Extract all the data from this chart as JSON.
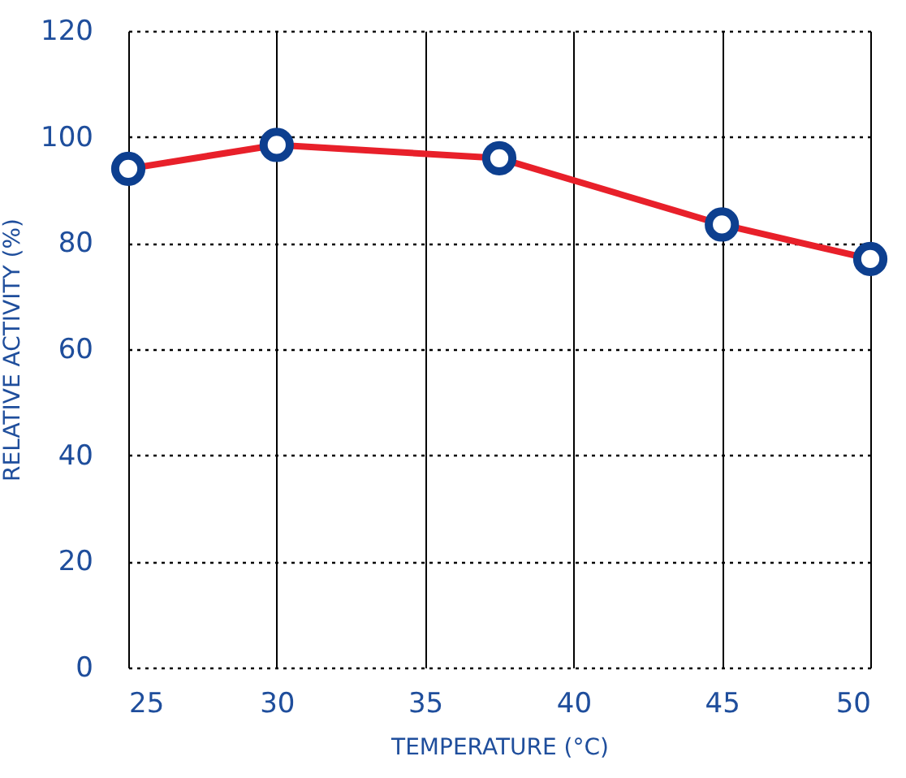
{
  "chart_data": {
    "type": "line",
    "xlabel": "TEMPERATURE (°C)",
    "ylabel": "RELATIVE ACTIVITY (%)",
    "x": [
      25,
      30,
      37.5,
      45,
      50
    ],
    "series": [
      {
        "color": "#e8202a",
        "values": [
          94,
          98.5,
          96,
          83.5,
          77
        ]
      }
    ],
    "xlim": [
      25,
      50
    ],
    "xticks": [
      25,
      30,
      35,
      40,
      45,
      50
    ],
    "ylim": [
      0,
      120
    ],
    "yticks": [
      0,
      20,
      40,
      60,
      80,
      100,
      120
    ],
    "grid": true,
    "marker": "circle",
    "line_style": "solid"
  }
}
